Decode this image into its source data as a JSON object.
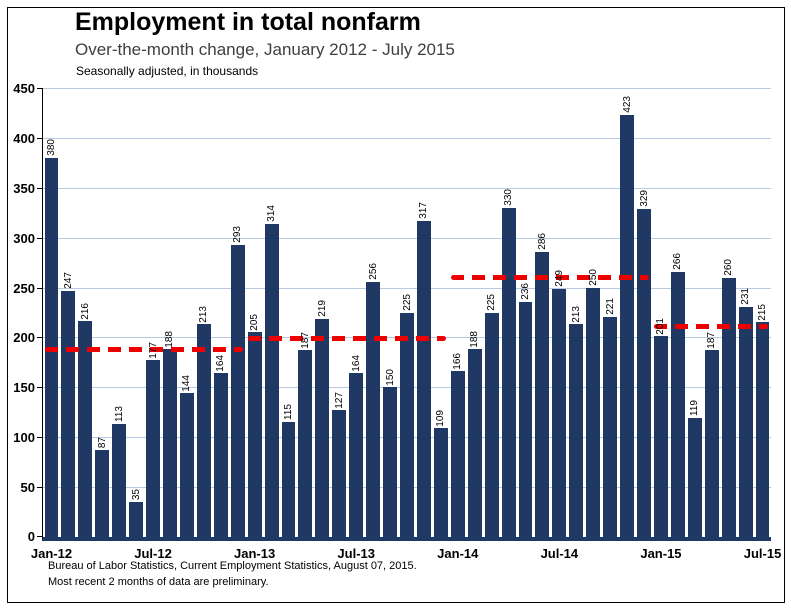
{
  "header": {
    "title": "Employment in total nonfarm",
    "subtitle": "Over-the-month change, January 2012 - July 2015",
    "note": "Seasonally adjusted, in thousands"
  },
  "footer": {
    "line1": "Bureau of Labor Statistics, Current Employment Statistics, August 07, 2015.",
    "line2": "Most recent 2 months of data are preliminary."
  },
  "colors": {
    "bar": "#1f3864",
    "gridline": "#b8c9e4",
    "average_line": "#ee0000",
    "axis": "#1f3864",
    "text": "#000000"
  },
  "chart_data": {
    "type": "bar",
    "title": "Employment in total nonfarm",
    "subtitle": "Over-the-month change, January 2012 - July 2015",
    "note": "Seasonally adjusted, in thousands",
    "grid": true,
    "ylim": [
      0,
      450
    ],
    "y_ticks": [
      0,
      50,
      100,
      150,
      200,
      250,
      300,
      350,
      400,
      450
    ],
    "x": [
      "Jan-12",
      "Feb-12",
      "Mar-12",
      "Apr-12",
      "May-12",
      "Jun-12",
      "Jul-12",
      "Aug-12",
      "Sep-12",
      "Oct-12",
      "Nov-12",
      "Dec-12",
      "Jan-13",
      "Feb-13",
      "Mar-13",
      "Apr-13",
      "May-13",
      "Jun-13",
      "Jul-13",
      "Aug-13",
      "Sep-13",
      "Oct-13",
      "Nov-13",
      "Dec-13",
      "Jan-14",
      "Feb-14",
      "Mar-14",
      "Apr-14",
      "May-14",
      "Jun-14",
      "Jul-14",
      "Aug-14",
      "Sep-14",
      "Oct-14",
      "Nov-14",
      "Dec-14",
      "Jan-15",
      "Feb-15",
      "Mar-15",
      "Apr-15",
      "May-15",
      "Jun-15",
      "Jul-15"
    ],
    "values": [
      380,
      247,
      216,
      87,
      113,
      35,
      177,
      188,
      144,
      213,
      164,
      293,
      205,
      314,
      115,
      187,
      219,
      127,
      164,
      256,
      150,
      225,
      317,
      109,
      166,
      188,
      225,
      330,
      236,
      286,
      249,
      213,
      250,
      221,
      423,
      329,
      201,
      266,
      119,
      187,
      260,
      231,
      215
    ],
    "bar_value_labels_shown": true,
    "x_tick_labels": [
      "Jan-12",
      "Jul-12",
      "Jan-13",
      "Jul-13",
      "Jan-14",
      "Jul-14",
      "Jan-15",
      "Jul-15"
    ],
    "dashed_red_lines": [
      {
        "value": 188,
        "from": "Jan-12",
        "to": "Dec-12"
      },
      {
        "value": 199,
        "from": "Jan-13",
        "to": "Dec-13"
      },
      {
        "value": 260,
        "from": "Jan-14",
        "to": "Dec-14"
      },
      {
        "value": 211,
        "from": "Jan-15",
        "to": "Jul-15"
      }
    ]
  }
}
